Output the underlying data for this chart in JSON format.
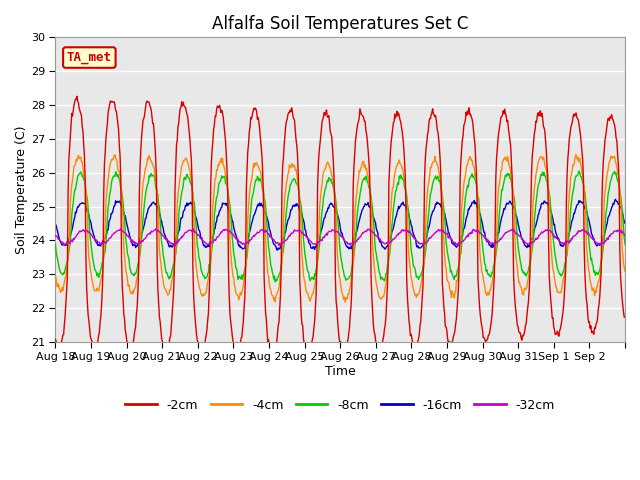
{
  "title": "Alfalfa Soil Temperatures Set C",
  "xlabel": "Time",
  "ylabel": "Soil Temperature (C)",
  "ylim": [
    21.0,
    30.0
  ],
  "yticks": [
    21.0,
    22.0,
    23.0,
    24.0,
    25.0,
    26.0,
    27.0,
    28.0,
    29.0,
    30.0
  ],
  "colors": {
    "-2cm": "#dd0000",
    "-4cm": "#ff8800",
    "-8cm": "#00cc00",
    "-16cm": "#0000cc",
    "-32cm": "#cc00cc"
  },
  "legend_labels": [
    "-2cm",
    "-4cm",
    "-8cm",
    "-16cm",
    "-32cm"
  ],
  "ta_met_box_color": "#ffffcc",
  "ta_met_text_color": "#cc0000",
  "ta_met_border_color": "#cc0000",
  "fig_bg_color": "#ffffff",
  "axes_bg_color": "#e8e8e8",
  "plot_area_color": "#f0f0f0",
  "band_color_light": "#f0f0f0",
  "band_color_dark": "#e0e0e0",
  "grid_color": "#ffffff",
  "n_days": 16,
  "samples_per_day": 48,
  "xtick_labels": [
    "Aug 18",
    "Aug 19",
    "Aug 20",
    "Aug 21",
    "Aug 22",
    "Aug 23",
    "Aug 24",
    "Aug 25",
    "Aug 26",
    "Aug 27",
    "Aug 28",
    "Aug 29",
    "Aug 30",
    "Aug 31",
    "Sep 1",
    "Sep 2"
  ],
  "title_fontsize": 12,
  "label_fontsize": 9,
  "tick_fontsize": 8,
  "legend_fontsize": 9
}
